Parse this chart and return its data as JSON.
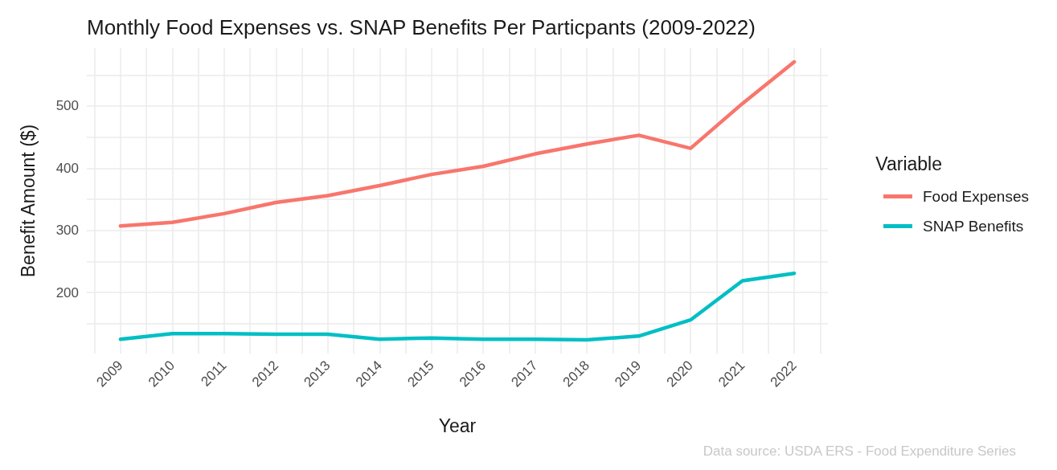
{
  "chart_data": {
    "type": "line",
    "title": "Monthly Food Expenses vs. SNAP Benefits Per Particpants (2009-2022)",
    "xlabel": "Year",
    "ylabel": "Benefit Amount ($)",
    "legend_title": "Variable",
    "annotations": [
      "Data source: USDA ERS - Food Expenditure Series"
    ],
    "x": [
      2009,
      2010,
      2011,
      2012,
      2013,
      2014,
      2015,
      2016,
      2017,
      2018,
      2019,
      2020,
      2021,
      2022
    ],
    "xlim": [
      2008.35,
      2022.65
    ],
    "xticks": [
      {
        "value": 2008.5,
        "label": null
      },
      2009,
      {
        "value": 2009.5,
        "label": null
      },
      2010,
      {
        "value": 2010.5,
        "label": null
      },
      2011,
      {
        "value": 2011.5,
        "label": null
      },
      2012,
      {
        "value": 2012.5,
        "label": null
      },
      2013,
      {
        "value": 2013.5,
        "label": null
      },
      2014,
      {
        "value": 2014.5,
        "label": null
      },
      2015,
      {
        "value": 2015.5,
        "label": null
      },
      2016,
      {
        "value": 2016.5,
        "label": null
      },
      2017,
      {
        "value": 2017.5,
        "label": null
      },
      2018,
      {
        "value": 2018.5,
        "label": null
      },
      2019,
      {
        "value": 2019.5,
        "label": null
      },
      2020,
      {
        "value": 2020.5,
        "label": null
      },
      2021,
      {
        "value": 2021.5,
        "label": null
      },
      2022,
      {
        "value": 2022.5,
        "label": null
      }
    ],
    "ylim": [
      102,
      593
    ],
    "yticks": [
      {
        "value": 150,
        "label": null
      },
      200,
      {
        "value": 250,
        "label": null
      },
      300,
      {
        "value": 350,
        "label": null
      },
      400,
      {
        "value": 450,
        "label": null
      },
      500,
      {
        "value": 550,
        "label": null
      }
    ],
    "grid": true,
    "legend": "right",
    "marker": "none",
    "line_style": "solid",
    "series": [
      {
        "name": "Food Expenses",
        "color": "#f8766d",
        "values": [
          307,
          313,
          327,
          345,
          356,
          372,
          390,
          403,
          423,
          439,
          453,
          432,
          504,
          571
        ]
      },
      {
        "name": "SNAP Benefits",
        "color": "#00bfc4",
        "values": [
          125,
          134,
          134,
          133,
          133,
          125,
          127,
          125,
          125,
          124,
          130,
          156,
          219,
          231
        ]
      }
    ]
  }
}
